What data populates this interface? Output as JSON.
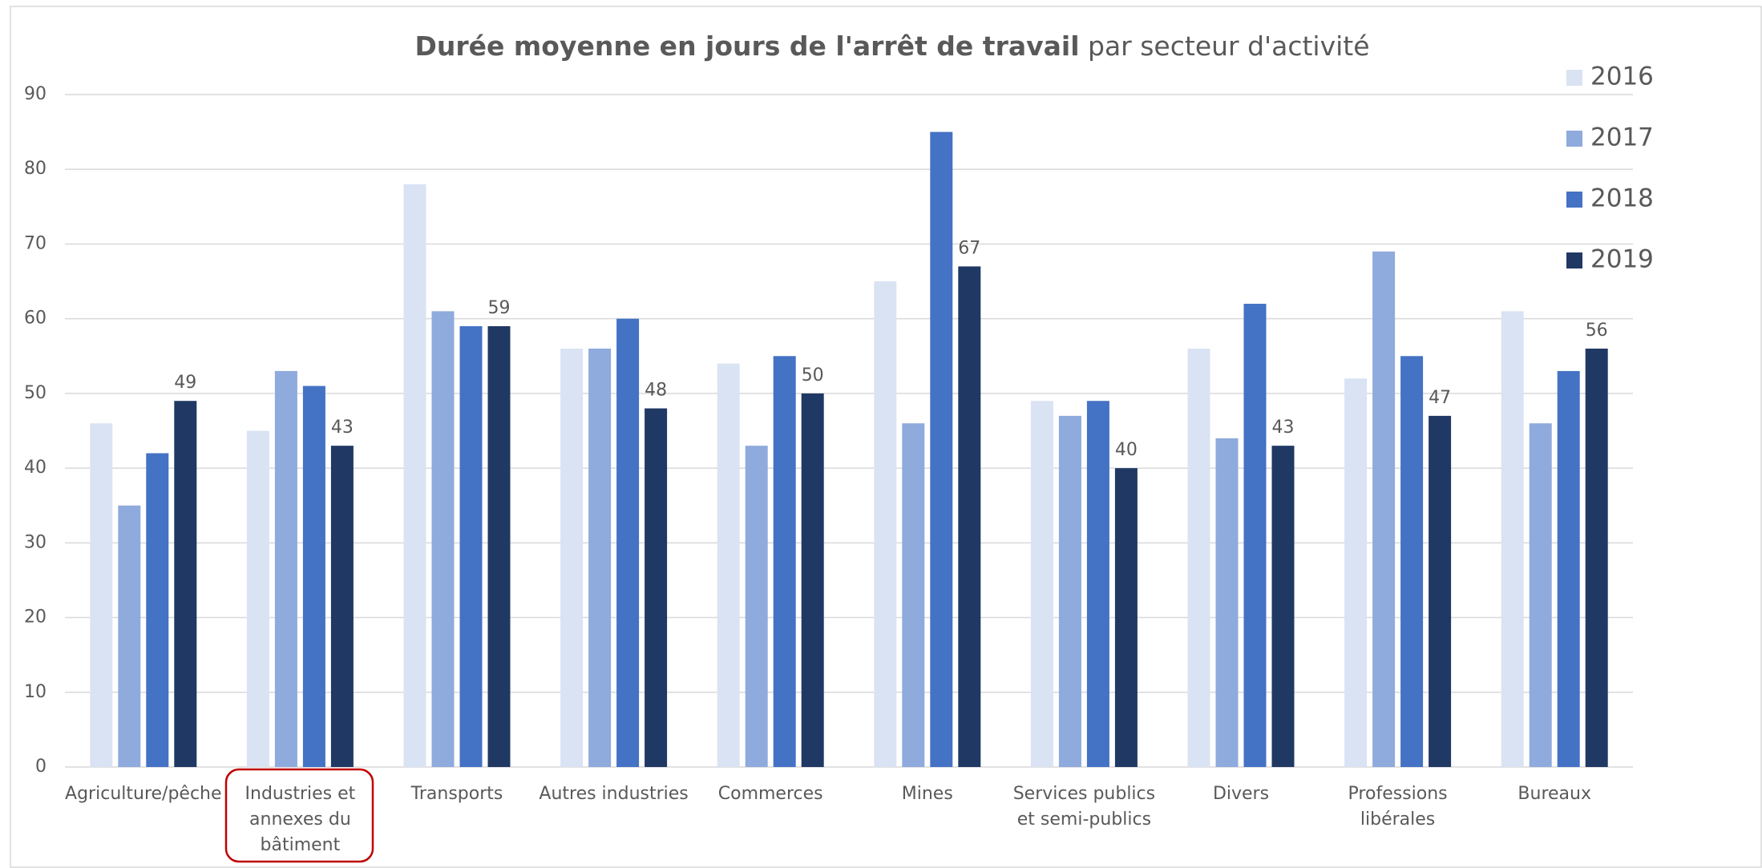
{
  "chart_data": {
    "type": "bar",
    "title": [
      "Durée moyenne en jours de l'arrêt de travail",
      "par secteur d'activité"
    ],
    "categories": [
      "Agriculture/pêche",
      "Industries et\nannexes du\nbâtiment",
      "Transports",
      "Autres industries",
      "Commerces",
      "Mines",
      "Services publics\net semi-publics",
      "Divers",
      "Professions\nlibérales",
      "Bureaux"
    ],
    "series": [
      {
        "name": "2016",
        "color": "#dae3f3",
        "values": [
          46,
          45,
          78,
          56,
          54,
          65,
          49,
          56,
          52,
          61
        ]
      },
      {
        "name": "2017",
        "color": "#8faadc",
        "values": [
          35,
          53,
          61,
          56,
          43,
          46,
          47,
          44,
          69,
          46
        ]
      },
      {
        "name": "2018",
        "color": "#4472c4",
        "values": [
          42,
          51,
          59,
          60,
          55,
          85,
          49,
          62,
          55,
          53
        ]
      },
      {
        "name": "2019",
        "color": "#203864",
        "values": [
          49,
          43,
          59,
          48,
          50,
          67,
          40,
          43,
          47,
          56
        ],
        "data_labels": true
      }
    ],
    "ylim": [
      0,
      90
    ],
    "yticks": [
      0,
      10,
      20,
      30,
      40,
      50,
      60,
      70,
      80,
      90
    ],
    "grid": true,
    "legend": "right"
  }
}
